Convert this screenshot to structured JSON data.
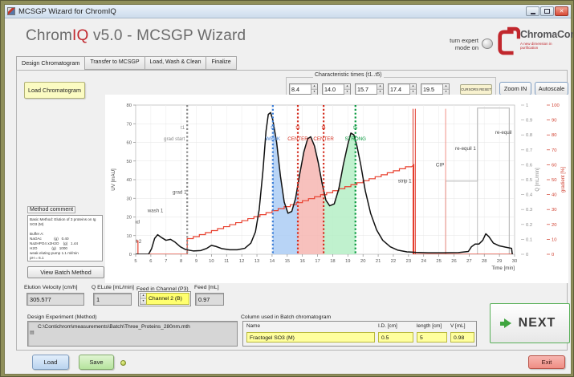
{
  "window": {
    "title": "MCSGP Wizard for ChromIQ"
  },
  "header": {
    "app_name_gray": "Chrom",
    "app_name_red": "IQ",
    "app_suffix": " v5.0 - MCSGP Wizard",
    "expert_mode_label": "turn expert\nmode on",
    "logo_name": "ChromaCon",
    "logo_tagline": "A new dimension in purification",
    "logo_color": "#c1272d"
  },
  "tabs": [
    {
      "label": "Design Chromatogram",
      "active": true
    },
    {
      "label": "Transfer to MCSGP",
      "active": false
    },
    {
      "label": "Load, Wash & Clean",
      "active": false
    },
    {
      "label": "Finalize",
      "active": false
    }
  ],
  "toolbar": {
    "load_chromatogram": "Load Chromatogram",
    "char_times_label": "Characteristic times (t1..t5)",
    "char_times": [
      "8.4",
      "14.0",
      "15.7",
      "17.4",
      "19.5"
    ],
    "cursors_reset": "CURSORS RESET",
    "zoom_in": "Zoom IN",
    "autoscale": "Autoscale"
  },
  "method_comment": {
    "label": "Method comment",
    "text": "Basic Method: Elution of 3 proteins on Ig\nSO3 (M)\n\nBuffer A:\nNaOAc            (g)   0.40\nNa2HPO4 x2H2O    (g)   1.44\nH2O              (g)   1000\nweak eluting pump 1.1 ml/min\npH = 6.1",
    "view_batch_method": "View Batch Method"
  },
  "fields": {
    "elution_velocity": {
      "label": "Elution Velocity [cm/h]",
      "value": "305.577"
    },
    "q_elute": {
      "label": "Q ELute [mL/min]",
      "value": "1"
    },
    "feed_channel": {
      "label": "Feed in Channel (P3)",
      "value": "Channel 2 (B)"
    },
    "feed": {
      "label": "Feed [mL]",
      "value": "0.97"
    }
  },
  "design_experiment": {
    "label": "Design Experiment (Method)",
    "path": "C:\\Contichrom\\measurements\\Batch\\Three_Proteins_280nm.mth"
  },
  "column_table": {
    "label": "Column used in Batch chromatogram",
    "headers": [
      "Name",
      "I.D. [cm]",
      "length [cm]",
      "V [mL]"
    ],
    "row": [
      "Fractogel SO3 (M)",
      "0.5",
      "5",
      "0.98"
    ]
  },
  "actions": {
    "load": "Load",
    "save": "Save",
    "next": "NEXT",
    "exit": "Exit"
  },
  "chart_data": {
    "type": "line",
    "title": "",
    "xlabel": "Time [min]",
    "ylabel": "UV [mAU]",
    "y2label": "Q [mL/min]",
    "y3label": "gradient [%]",
    "xlim": [
      5,
      30
    ],
    "ylim": [
      0,
      80
    ],
    "y2lim": [
      0,
      1
    ],
    "y3lim": [
      0,
      100
    ],
    "grid": true,
    "uv_series": [
      [
        5.0,
        0
      ],
      [
        5.85,
        0
      ],
      [
        6.05,
        3
      ],
      [
        6.25,
        8.5
      ],
      [
        6.45,
        10.5
      ],
      [
        6.7,
        9
      ],
      [
        7.0,
        7.5
      ],
      [
        7.3,
        8
      ],
      [
        7.6,
        6.5
      ],
      [
        7.95,
        4
      ],
      [
        8.3,
        2.5
      ],
      [
        8.8,
        1.8
      ],
      [
        9.3,
        2
      ],
      [
        9.7,
        3.2
      ],
      [
        10.0,
        4.8
      ],
      [
        10.3,
        4.2
      ],
      [
        10.7,
        3
      ],
      [
        11.2,
        2.4
      ],
      [
        11.7,
        2.4
      ],
      [
        12.2,
        3.2
      ],
      [
        12.6,
        6
      ],
      [
        12.9,
        12
      ],
      [
        13.15,
        24
      ],
      [
        13.4,
        45
      ],
      [
        13.6,
        66
      ],
      [
        13.75,
        75
      ],
      [
        13.9,
        76
      ],
      [
        14.05,
        72
      ],
      [
        14.3,
        60
      ],
      [
        14.55,
        42
      ],
      [
        14.8,
        28
      ],
      [
        15.05,
        22
      ],
      [
        15.3,
        23
      ],
      [
        15.55,
        30
      ],
      [
        15.8,
        42
      ],
      [
        16.1,
        55
      ],
      [
        16.35,
        62
      ],
      [
        16.55,
        63
      ],
      [
        16.8,
        58
      ],
      [
        17.05,
        49
      ],
      [
        17.3,
        38
      ],
      [
        17.55,
        29
      ],
      [
        17.8,
        26
      ],
      [
        18.1,
        27
      ],
      [
        18.4,
        35
      ],
      [
        18.7,
        48
      ],
      [
        19.0,
        59
      ],
      [
        19.2,
        65
      ],
      [
        19.4,
        64
      ],
      [
        19.6,
        58
      ],
      [
        19.85,
        48
      ],
      [
        20.15,
        34
      ],
      [
        20.5,
        22
      ],
      [
        20.9,
        13
      ],
      [
        21.3,
        7.5
      ],
      [
        21.8,
        4
      ],
      [
        22.3,
        2.2
      ],
      [
        22.9,
        1.3
      ],
      [
        23.5,
        1
      ],
      [
        24.3,
        0.8
      ],
      [
        25.3,
        0.8
      ],
      [
        26.3,
        0.9
      ],
      [
        26.95,
        1.5
      ],
      [
        27.15,
        4
      ],
      [
        27.4,
        5.5
      ],
      [
        27.65,
        5.5
      ],
      [
        27.9,
        7.5
      ],
      [
        28.1,
        11
      ],
      [
        28.3,
        9.5
      ],
      [
        28.6,
        6
      ],
      [
        29.0,
        4.5
      ],
      [
        29.4,
        3.8
      ],
      [
        29.8,
        3.2
      ],
      [
        29.85,
        0
      ]
    ],
    "gradient_series": {
      "color": "#e8402f",
      "pre": [
        [
          5.02,
          9
        ],
        [
          5.15,
          9
        ],
        [
          5.15,
          0
        ],
        [
          8.4,
          0
        ]
      ],
      "stair": {
        "x0": 8.4,
        "p0": 10.5,
        "x1": 23.35,
        "p1": 60,
        "step": 0.4
      },
      "post": [
        [
          23.35,
          0
        ],
        [
          29.9,
          0
        ]
      ]
    },
    "q_series": {
      "color": "#bdbdbd",
      "points": [
        [
          25.45,
          0
        ],
        [
          25.45,
          0.49
        ],
        [
          27.55,
          0.49
        ],
        [
          27.55,
          0.98
        ],
        [
          29.65,
          0.98
        ],
        [
          29.65,
          0
        ]
      ]
    },
    "cursors": [
      {
        "id": "t1",
        "x": 8.4,
        "color": "#8a8a8a",
        "line1": "t1",
        "line2": "grad start",
        "align": "end"
      },
      {
        "id": "t2",
        "x": 14.05,
        "color": "#3e7fd8",
        "line1": "t2",
        "line2": "WEAK",
        "align": "middle"
      },
      {
        "id": "t3",
        "x": 15.7,
        "color": "#d42f20",
        "line1": "t3",
        "line2": "CENTER",
        "align": "middle"
      },
      {
        "id": "t4",
        "x": 17.4,
        "color": "#d42f20",
        "line1": "t4",
        "line2": "CENTER",
        "align": "middle"
      },
      {
        "id": "t5",
        "x": 19.5,
        "color": "#0a9a40",
        "line1": "t5",
        "line2": "STRONG",
        "align": "middle"
      }
    ],
    "regions": [
      {
        "from": 14.05,
        "to": 15.7,
        "fill": "#abcdf5"
      },
      {
        "from": 15.7,
        "to": 17.4,
        "fill": "#f6b6b2"
      },
      {
        "from": 17.4,
        "to": 19.5,
        "fill": "#b5eec6"
      }
    ],
    "event_lines": [
      {
        "x": 23.3,
        "color": "#e0372a",
        "y_to": 78
      },
      {
        "x": 23.45,
        "color": "#e0372a",
        "y_to": 78
      },
      {
        "x": 25.45,
        "color": "#f09185",
        "y_to": 78
      },
      {
        "x": 27.55,
        "color": "#bdbdbd",
        "y_to": 78
      },
      {
        "x": 29.65,
        "color": "#bdbdbd",
        "y_to": 78
      }
    ],
    "annotations": [
      {
        "x": 6.3,
        "y": 22.5,
        "text": "wash 1",
        "anchor": "middle",
        "color": "#555555"
      },
      {
        "x": 4.95,
        "y": 16.5,
        "text": "load",
        "anchor": "middle",
        "color": "#555555"
      },
      {
        "x": 4.9,
        "y": 6,
        "text": "equil 2",
        "anchor": "middle",
        "color": "#555555"
      },
      {
        "x": 7.9,
        "y": 32.5,
        "text": "grad 1",
        "anchor": "middle",
        "color": "#555555"
      },
      {
        "x": 23.2,
        "y": 38.5,
        "text": "strip 1",
        "anchor": "end",
        "color": "#444444"
      },
      {
        "x": 25.35,
        "y": 47,
        "text": "CIP",
        "anchor": "end",
        "color": "#444444"
      },
      {
        "x": 27.45,
        "y": 56,
        "text": "re-equil 1",
        "anchor": "end",
        "color": "#444444"
      },
      {
        "x": 28.72,
        "y": 64.5,
        "text": "re-equil",
        "anchor": "start",
        "color": "#444444"
      }
    ]
  }
}
